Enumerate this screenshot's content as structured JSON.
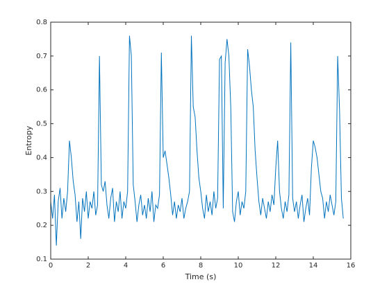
{
  "chart_data": {
    "type": "line",
    "xlabel": "Time (s)",
    "ylabel": "Entropy",
    "x": [
      0,
      0.1,
      0.2,
      0.3,
      0.4,
      0.5,
      0.6,
      0.7,
      0.8,
      0.9,
      1,
      1.1,
      1.2,
      1.3,
      1.4,
      1.5,
      1.6,
      1.7,
      1.8,
      1.9,
      2,
      2.1,
      2.2,
      2.3,
      2.4,
      2.5,
      2.6,
      2.7,
      2.8,
      2.9,
      3,
      3.1,
      3.2,
      3.3,
      3.4,
      3.5,
      3.6,
      3.7,
      3.8,
      3.9,
      4,
      4.1,
      4.2,
      4.3,
      4.4,
      4.5,
      4.6,
      4.7,
      4.8,
      4.9,
      5,
      5.1,
      5.2,
      5.3,
      5.4,
      5.5,
      5.6,
      5.7,
      5.8,
      5.9,
      6,
      6.1,
      6.2,
      6.3,
      6.4,
      6.5,
      6.6,
      6.7,
      6.8,
      6.9,
      7,
      7.1,
      7.2,
      7.3,
      7.4,
      7.5,
      7.6,
      7.7,
      7.8,
      7.9,
      8,
      8.1,
      8.2,
      8.3,
      8.4,
      8.5,
      8.6,
      8.7,
      8.8,
      8.9,
      9,
      9.1,
      9.2,
      9.3,
      9.4,
      9.5,
      9.6,
      9.7,
      9.8,
      9.9,
      10,
      10.1,
      10.2,
      10.3,
      10.4,
      10.5,
      10.6,
      10.7,
      10.8,
      10.9,
      11,
      11.1,
      11.2,
      11.3,
      11.4,
      11.5,
      11.6,
      11.7,
      11.8,
      11.9,
      12,
      12.1,
      12.2,
      12.3,
      12.4,
      12.5,
      12.6,
      12.7,
      12.8,
      12.9,
      13,
      13.1,
      13.2,
      13.3,
      13.4,
      13.5,
      13.6,
      13.7,
      13.8,
      13.9,
      14,
      14.1,
      14.2,
      14.3,
      14.4,
      14.5,
      14.6,
      14.7,
      14.8,
      14.9,
      15,
      15.1,
      15.2,
      15.3,
      15.4,
      15.5,
      15.6
    ],
    "series": [
      {
        "name": "Entropy",
        "color": "#0072bd",
        "values": [
          0.27,
          0.22,
          0.29,
          0.14,
          0.27,
          0.31,
          0.22,
          0.28,
          0.24,
          0.3,
          0.45,
          0.4,
          0.33,
          0.29,
          0.21,
          0.27,
          0.16,
          0.28,
          0.24,
          0.3,
          0.22,
          0.27,
          0.25,
          0.3,
          0.23,
          0.26,
          0.7,
          0.32,
          0.3,
          0.33,
          0.26,
          0.22,
          0.28,
          0.31,
          0.21,
          0.27,
          0.24,
          0.3,
          0.22,
          0.27,
          0.25,
          0.3,
          0.76,
          0.7,
          0.32,
          0.27,
          0.21,
          0.26,
          0.29,
          0.23,
          0.26,
          0.22,
          0.28,
          0.24,
          0.3,
          0.21,
          0.26,
          0.25,
          0.29,
          0.71,
          0.4,
          0.42,
          0.38,
          0.34,
          0.29,
          0.23,
          0.27,
          0.22,
          0.26,
          0.24,
          0.28,
          0.22,
          0.25,
          0.27,
          0.3,
          0.76,
          0.55,
          0.52,
          0.42,
          0.34,
          0.3,
          0.25,
          0.22,
          0.29,
          0.24,
          0.27,
          0.23,
          0.3,
          0.25,
          0.28,
          0.69,
          0.7,
          0.25,
          0.68,
          0.75,
          0.7,
          0.55,
          0.24,
          0.21,
          0.27,
          0.3,
          0.23,
          0.27,
          0.25,
          0.3,
          0.72,
          0.67,
          0.6,
          0.55,
          0.42,
          0.34,
          0.27,
          0.23,
          0.28,
          0.25,
          0.22,
          0.27,
          0.24,
          0.29,
          0.26,
          0.37,
          0.45,
          0.3,
          0.25,
          0.22,
          0.27,
          0.24,
          0.29,
          0.74,
          0.28,
          0.24,
          0.27,
          0.22,
          0.26,
          0.29,
          0.21,
          0.25,
          0.28,
          0.23,
          0.37,
          0.45,
          0.43,
          0.4,
          0.35,
          0.3,
          0.28,
          0.22,
          0.27,
          0.24,
          0.29,
          0.26,
          0.23,
          0.27,
          0.7,
          0.54,
          0.28,
          0.22
        ]
      }
    ],
    "xlim": [
      0,
      16
    ],
    "xticks": [
      0,
      2,
      4,
      6,
      8,
      10,
      12,
      14,
      16
    ],
    "ylim": [
      0.1,
      0.8
    ],
    "yticks": [
      0.1,
      0.2,
      0.3,
      0.4,
      0.5,
      0.6,
      0.7,
      0.8
    ],
    "grid": false
  }
}
